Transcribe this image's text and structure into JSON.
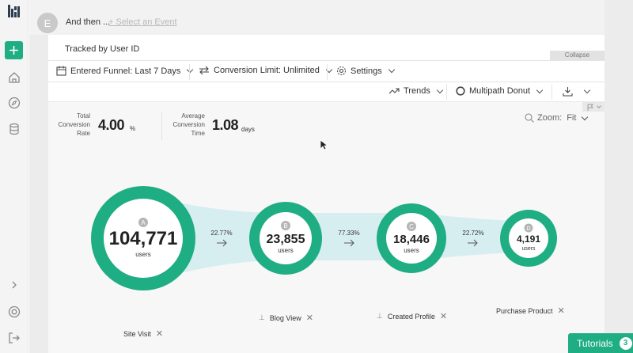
{
  "event_row": {
    "avatar_letter": "E",
    "and_then": "And then ...",
    "select_event": "+ Select an Event"
  },
  "panel": {
    "tracked_by": "Tracked by User ID",
    "collapse": "Collapse"
  },
  "toolbar": {
    "funnel": "Entered Funnel: Last 7 Days",
    "conversion_limit": "Conversion Limit: Unlimited",
    "settings": "Settings"
  },
  "toolbar2": {
    "trends": "Trends",
    "view": "Multipath Donut"
  },
  "stats": {
    "total_label_1": "Total",
    "total_label_2": "Conversion",
    "total_label_3": "Rate",
    "total_value": "4.00",
    "total_unit": "%",
    "avg_label_1": "Average",
    "avg_label_2": "Conversion",
    "avg_label_3": "Time",
    "avg_value": "1.08",
    "avg_unit": "days"
  },
  "zoom": {
    "label": "Zoom:",
    "value": "Fit"
  },
  "funnel": {
    "users_word": "users",
    "nodes": [
      {
        "letter": "A",
        "count": "104,771",
        "label": "Site Visit",
        "users": 104771
      },
      {
        "letter": "B",
        "count": "23,855",
        "label": "Blog View",
        "users": 23855
      },
      {
        "letter": "C",
        "count": "18,446",
        "label": "Created Profile",
        "users": 18446
      },
      {
        "letter": "D",
        "count": "4,191",
        "label": "Purchase Product",
        "users": 4191
      }
    ],
    "steps": [
      {
        "pct": "22.77%"
      },
      {
        "pct": "77.33%"
      },
      {
        "pct": "22.72%"
      }
    ]
  },
  "tutorials": {
    "label": "Tutorials",
    "count": "3"
  },
  "colors": {
    "accent": "#1fad83",
    "ring": "#1fad83",
    "band": "#d7eef0"
  }
}
